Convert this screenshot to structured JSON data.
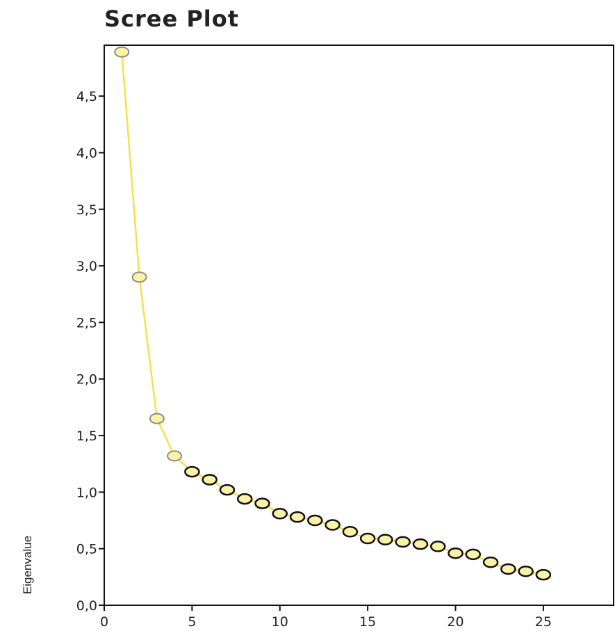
{
  "chart_data": {
    "type": "line",
    "title": "Scree Plot",
    "xlabel": "",
    "ylabel": "Eigenvalue",
    "xlim": [
      0,
      29
    ],
    "ylim": [
      0,
      4.95
    ],
    "x_ticks": [
      0,
      5,
      10,
      15,
      20,
      25
    ],
    "x_tick_labels": [
      "0",
      "5",
      "10",
      "15",
      "20",
      "25"
    ],
    "y_ticks": [
      0,
      0.5,
      1,
      1.5,
      2,
      2.5,
      3,
      3.5,
      4,
      4.5
    ],
    "y_tick_labels": [
      "0,0",
      "0,5",
      "1,0",
      "1,5",
      "2,0",
      "2,5",
      "3,0",
      "3,5",
      "4,0",
      "4,5"
    ],
    "grid": false,
    "series": [
      {
        "x": [
          1,
          2,
          3,
          4,
          5,
          6,
          7,
          8,
          9,
          10,
          11,
          12,
          13,
          14,
          15,
          16,
          17,
          18,
          19,
          20,
          21,
          22,
          23,
          24,
          25
        ],
        "values": [
          4.89,
          2.9,
          1.65,
          1.32,
          1.18,
          1.11,
          1.02,
          0.94,
          0.9,
          0.81,
          0.78,
          0.75,
          0.71,
          0.65,
          0.59,
          0.58,
          0.56,
          0.54,
          0.52,
          0.46,
          0.45,
          0.38,
          0.32,
          0.3,
          0.27
        ]
      }
    ],
    "colors": {
      "line": "#f5e04a",
      "marker_fill": "#fdf3a6",
      "marker_stroke_early": "#8c8c8c",
      "marker_stroke": "#111111",
      "axis": "#111111"
    }
  }
}
